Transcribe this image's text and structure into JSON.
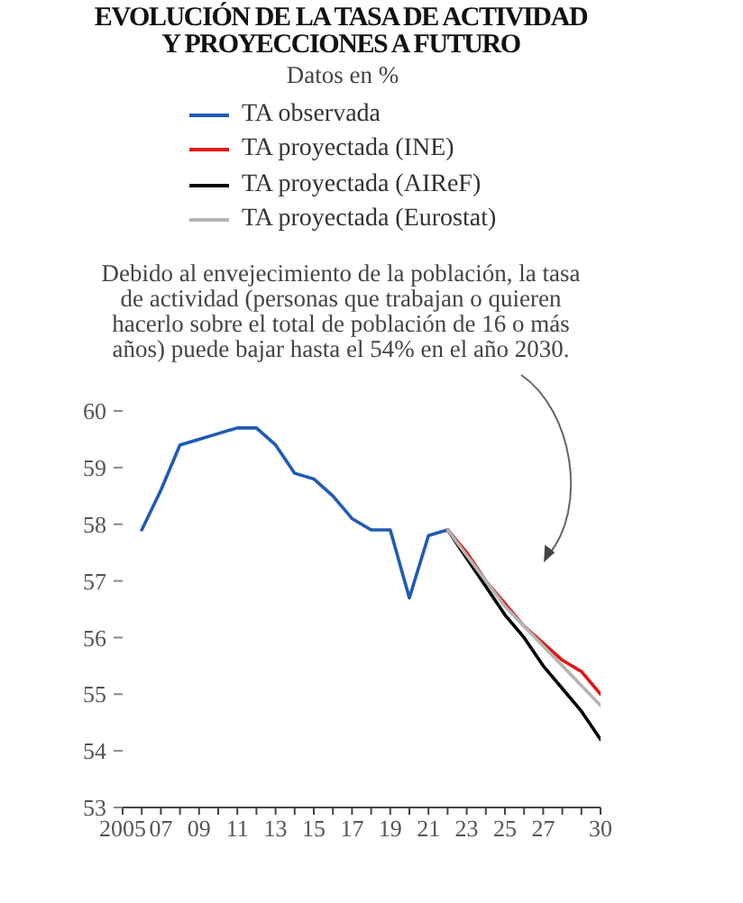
{
  "chart_data": {
    "type": "line",
    "title": "EVOLUCIÓN DE LA TASA DE ACTIVIDAD Y PROYECCIONES A FUTURO",
    "subtitle": "Datos en %",
    "annotations": [
      "Debido al envejecimiento de la población, la tasa de actividad (personas que trabajan o quieren hacerlo sobre el total de población de 16 o más años) puede bajar hasta el 54% en el año 2030."
    ],
    "series": [
      {
        "name": "TA observada",
        "color": "#1f5bb5",
        "x": [
          2006,
          2007,
          2008,
          2009,
          2010,
          2011,
          2012,
          2013,
          2014,
          2015,
          2016,
          2017,
          2018,
          2019,
          2020,
          2021,
          2022
        ],
        "values": [
          57.9,
          58.6,
          59.4,
          59.5,
          59.6,
          59.7,
          59.7,
          59.4,
          58.9,
          58.8,
          58.5,
          58.1,
          57.9,
          57.9,
          56.7,
          57.8,
          57.9
        ]
      },
      {
        "name": "TA proyectada (INE)",
        "color": "#e31414",
        "x": [
          2022,
          2023,
          2024,
          2025,
          2026,
          2027,
          2028,
          2029,
          2030
        ],
        "values": [
          57.9,
          57.5,
          57.0,
          56.6,
          56.2,
          55.9,
          55.6,
          55.4,
          55.0
        ]
      },
      {
        "name": "TA proyectada (AIReF)",
        "color": "#000000",
        "x": [
          2022,
          2023,
          2024,
          2025,
          2026,
          2027,
          2028,
          2029,
          2030
        ],
        "values": [
          57.9,
          57.4,
          56.9,
          56.4,
          56.0,
          55.5,
          55.1,
          54.7,
          54.2
        ]
      },
      {
        "name": "TA proyectada (Eurostat)",
        "color": "#b4b4b4",
        "x": [
          2022,
          2023,
          2024,
          2025,
          2026,
          2027,
          2028,
          2029,
          2030
        ],
        "values": [
          57.9,
          57.45,
          57.0,
          56.55,
          56.2,
          55.85,
          55.5,
          55.15,
          54.8
        ]
      }
    ],
    "xlim": [
      2005,
      2030
    ],
    "xticks": [
      2005,
      {
        "value": 2006,
        "label": null
      },
      {
        "value": 2007,
        "label": "07"
      },
      {
        "value": 2008,
        "label": null
      },
      {
        "value": 2009,
        "label": "09"
      },
      {
        "value": 2010,
        "label": null
      },
      {
        "value": 2011,
        "label": "11"
      },
      {
        "value": 2012,
        "label": null
      },
      {
        "value": 2013,
        "label": "13"
      },
      {
        "value": 2014,
        "label": null
      },
      {
        "value": 2015,
        "label": "15"
      },
      {
        "value": 2016,
        "label": null
      },
      {
        "value": 2017,
        "label": "17"
      },
      {
        "value": 2018,
        "label": null
      },
      {
        "value": 2019,
        "label": "19"
      },
      {
        "value": 2020,
        "label": null
      },
      {
        "value": 2021,
        "label": "21"
      },
      {
        "value": 2022,
        "label": null
      },
      {
        "value": 2023,
        "label": "23"
      },
      {
        "value": 2024,
        "label": null
      },
      {
        "value": 2025,
        "label": "25"
      },
      {
        "value": 2026,
        "label": null
      },
      {
        "value": 2027,
        "label": "27"
      },
      {
        "value": 2028,
        "label": null
      },
      {
        "value": 2029,
        "label": null
      },
      {
        "value": 2030,
        "label": "30"
      }
    ],
    "ylim": [
      53,
      60
    ],
    "yticks": [
      53,
      54,
      55,
      56,
      57,
      58,
      59,
      60
    ],
    "legend": "top",
    "marker": "none",
    "line_style": "solid",
    "grid": false
  }
}
